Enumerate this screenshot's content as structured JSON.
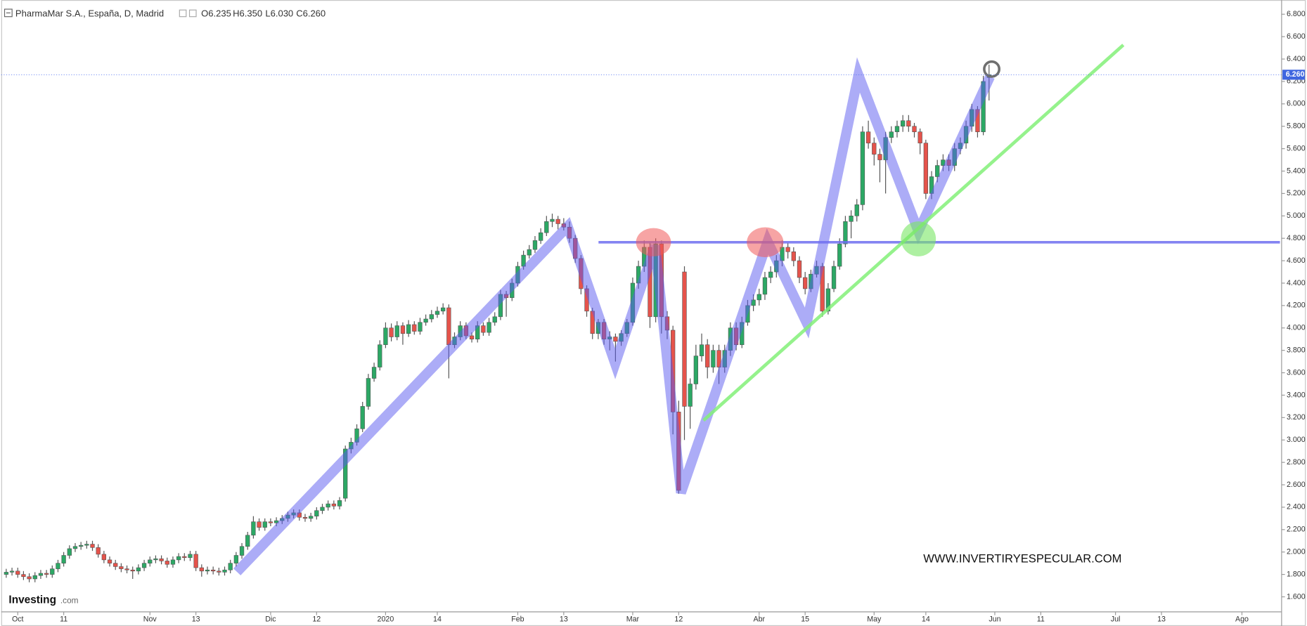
{
  "header": {
    "title": "PharmaMar S.A., España, D, Madrid",
    "open": "O6.235",
    "high": "H6.350",
    "low": "L6.030",
    "close": "C6.260"
  },
  "watermark": "WWW.INVERTIRYESPECULAR.COM",
  "logo": {
    "name": "Investing",
    "suffix": ".com"
  },
  "chart_data": {
    "type": "candlestick",
    "up_color": "#2ca865",
    "down_color": "#e5534b",
    "xlim": [
      -0.87,
      221.9
    ],
    "ylim": [
      1.466,
      6.927
    ],
    "yticks": [
      {
        "value": 1.6,
        "label": "1.600"
      },
      {
        "value": 1.8,
        "label": "1.800"
      },
      {
        "value": 2.0,
        "label": "2.000"
      },
      {
        "value": 2.2,
        "label": "2.200"
      },
      {
        "value": 2.4,
        "label": "2.400"
      },
      {
        "value": 2.6,
        "label": "2.600"
      },
      {
        "value": 2.8,
        "label": "2.800"
      },
      {
        "value": 3.0,
        "label": "3.000"
      },
      {
        "value": 3.2,
        "label": "3.200"
      },
      {
        "value": 3.4,
        "label": "3.400"
      },
      {
        "value": 3.6,
        "label": "3.600"
      },
      {
        "value": 3.8,
        "label": "3.800"
      },
      {
        "value": 4.0,
        "label": "4.000"
      },
      {
        "value": 4.2,
        "label": "4.200"
      },
      {
        "value": 4.4,
        "label": "4.400"
      },
      {
        "value": 4.6,
        "label": "4.600"
      },
      {
        "value": 4.8,
        "label": "4.800"
      },
      {
        "value": 5.0,
        "label": "5.000"
      },
      {
        "value": 5.2,
        "label": "5.200"
      },
      {
        "value": 5.4,
        "label": "5.400"
      },
      {
        "value": 5.6,
        "label": "5.600"
      },
      {
        "value": 5.8,
        "label": "5.800"
      },
      {
        "value": 6.0,
        "label": "6.000"
      },
      {
        "value": 6.2,
        "label": "6.200"
      },
      {
        "value": 6.4,
        "label": "6.400"
      },
      {
        "value": 6.6,
        "label": "6.600"
      },
      {
        "value": 6.8,
        "label": "6.800"
      }
    ],
    "xticks": [
      {
        "value": 2,
        "label": "Oct"
      },
      {
        "value": 10,
        "label": "11"
      },
      {
        "value": 25,
        "label": "Nov"
      },
      {
        "value": 33,
        "label": "13"
      },
      {
        "value": 46,
        "label": "Dic"
      },
      {
        "value": 54,
        "label": "12"
      },
      {
        "value": 66,
        "label": "2020"
      },
      {
        "value": 75,
        "label": "14"
      },
      {
        "value": 89,
        "label": "Feb"
      },
      {
        "value": 97,
        "label": "13"
      },
      {
        "value": 109,
        "label": "Mar"
      },
      {
        "value": 117,
        "label": "12"
      },
      {
        "value": 131,
        "label": "Abr"
      },
      {
        "value": 139,
        "label": "15"
      },
      {
        "value": 151,
        "label": "May"
      },
      {
        "value": 160,
        "label": "14"
      },
      {
        "value": 172,
        "label": "Jun"
      },
      {
        "value": 180,
        "label": "11"
      },
      {
        "value": 193,
        "label": "Jul"
      },
      {
        "value": 201,
        "label": "13"
      },
      {
        "value": 215,
        "label": "Ago"
      }
    ],
    "last_price": {
      "value": 6.26,
      "label": "6.260"
    },
    "candles": [
      [
        1.8,
        1.85,
        1.77,
        1.82
      ],
      [
        1.82,
        1.86,
        1.79,
        1.83
      ],
      [
        1.83,
        1.86,
        1.77,
        1.8
      ],
      [
        1.8,
        1.83,
        1.75,
        1.78
      ],
      [
        1.78,
        1.81,
        1.73,
        1.76
      ],
      [
        1.76,
        1.82,
        1.73,
        1.79
      ],
      [
        1.79,
        1.84,
        1.76,
        1.81
      ],
      [
        1.81,
        1.84,
        1.77,
        1.8
      ],
      [
        1.8,
        1.88,
        1.77,
        1.85
      ],
      [
        1.85,
        1.93,
        1.82,
        1.9
      ],
      [
        1.9,
        2.0,
        1.87,
        1.97
      ],
      [
        1.97,
        2.06,
        1.94,
        2.03
      ],
      [
        2.03,
        2.08,
        2.0,
        2.05
      ],
      [
        2.05,
        2.09,
        2.02,
        2.06
      ],
      [
        2.06,
        2.1,
        2.03,
        2.07
      ],
      [
        2.07,
        2.1,
        2.01,
        2.04
      ],
      [
        2.04,
        2.07,
        1.95,
        1.98
      ],
      [
        1.98,
        2.01,
        1.9,
        1.93
      ],
      [
        1.93,
        1.96,
        1.87,
        1.9
      ],
      [
        1.9,
        1.93,
        1.84,
        1.87
      ],
      [
        1.87,
        1.9,
        1.82,
        1.85
      ],
      [
        1.85,
        1.88,
        1.81,
        1.84
      ],
      [
        1.84,
        1.87,
        1.76,
        1.83
      ],
      [
        1.83,
        1.89,
        1.8,
        1.86
      ],
      [
        1.86,
        1.93,
        1.83,
        1.9
      ],
      [
        1.9,
        1.96,
        1.87,
        1.93
      ],
      [
        1.93,
        1.97,
        1.9,
        1.94
      ],
      [
        1.94,
        1.97,
        1.89,
        1.92
      ],
      [
        1.92,
        1.95,
        1.86,
        1.89
      ],
      [
        1.89,
        1.96,
        1.86,
        1.93
      ],
      [
        1.93,
        1.99,
        1.9,
        1.96
      ],
      [
        1.96,
        1.99,
        1.92,
        1.95
      ],
      [
        1.95,
        2.01,
        1.92,
        1.98
      ],
      [
        1.98,
        2.01,
        1.83,
        1.86
      ],
      [
        1.86,
        1.89,
        1.78,
        1.83
      ],
      [
        1.83,
        1.87,
        1.8,
        1.84
      ],
      [
        1.84,
        1.87,
        1.8,
        1.83
      ],
      [
        1.83,
        1.86,
        1.79,
        1.82
      ],
      [
        1.82,
        1.87,
        1.79,
        1.84
      ],
      [
        1.84,
        1.93,
        1.81,
        1.9
      ],
      [
        1.9,
        2.0,
        1.87,
        1.97
      ],
      [
        1.97,
        2.08,
        1.94,
        2.05
      ],
      [
        2.05,
        2.18,
        2.02,
        2.15
      ],
      [
        2.15,
        2.32,
        2.12,
        2.27
      ],
      [
        2.27,
        2.3,
        2.19,
        2.22
      ],
      [
        2.22,
        2.3,
        2.19,
        2.27
      ],
      [
        2.27,
        2.3,
        2.23,
        2.26
      ],
      [
        2.26,
        2.31,
        2.23,
        2.28
      ],
      [
        2.28,
        2.33,
        2.25,
        2.3
      ],
      [
        2.3,
        2.36,
        2.27,
        2.33
      ],
      [
        2.33,
        2.38,
        2.3,
        2.35
      ],
      [
        2.35,
        2.38,
        2.28,
        2.31
      ],
      [
        2.31,
        2.34,
        2.27,
        2.3
      ],
      [
        2.3,
        2.35,
        2.27,
        2.32
      ],
      [
        2.32,
        2.4,
        2.29,
        2.37
      ],
      [
        2.37,
        2.43,
        2.34,
        2.4
      ],
      [
        2.4,
        2.46,
        2.37,
        2.43
      ],
      [
        2.43,
        2.46,
        2.38,
        2.41
      ],
      [
        2.41,
        2.49,
        2.38,
        2.46
      ],
      [
        2.48,
        2.95,
        2.45,
        2.92
      ],
      [
        2.92,
        3.02,
        2.88,
        2.98
      ],
      [
        2.98,
        3.14,
        2.95,
        3.1
      ],
      [
        3.1,
        3.34,
        3.07,
        3.3
      ],
      [
        3.3,
        3.59,
        3.27,
        3.55
      ],
      [
        3.55,
        3.69,
        3.52,
        3.65
      ],
      [
        3.65,
        3.89,
        3.62,
        3.85
      ],
      [
        3.85,
        4.05,
        3.82,
        4.0
      ],
      [
        4.0,
        4.04,
        3.88,
        3.92
      ],
      [
        3.92,
        4.06,
        3.89,
        4.02
      ],
      [
        4.02,
        4.05,
        3.85,
        3.95
      ],
      [
        3.95,
        4.07,
        3.92,
        4.03
      ],
      [
        4.03,
        4.06,
        3.94,
        3.97
      ],
      [
        3.97,
        4.09,
        3.94,
        4.05
      ],
      [
        4.05,
        4.12,
        4.02,
        4.08
      ],
      [
        4.08,
        4.16,
        4.05,
        4.12
      ],
      [
        4.12,
        4.19,
        4.09,
        4.15
      ],
      [
        4.15,
        4.22,
        4.12,
        4.18
      ],
      [
        4.18,
        4.21,
        3.55,
        3.85
      ],
      [
        3.85,
        3.96,
        3.82,
        3.92
      ],
      [
        3.92,
        4.06,
        3.89,
        4.02
      ],
      [
        4.02,
        4.05,
        3.9,
        3.93
      ],
      [
        3.93,
        3.96,
        3.87,
        3.9
      ],
      [
        3.9,
        4.06,
        3.87,
        4.02
      ],
      [
        4.02,
        4.05,
        3.93,
        3.96
      ],
      [
        3.96,
        4.09,
        3.93,
        4.05
      ],
      [
        4.05,
        4.14,
        4.02,
        4.1
      ],
      [
        4.1,
        4.34,
        4.07,
        4.3
      ],
      [
        4.3,
        4.33,
        4.1,
        4.27
      ],
      [
        4.27,
        4.44,
        4.24,
        4.4
      ],
      [
        4.4,
        4.59,
        4.37,
        4.55
      ],
      [
        4.55,
        4.69,
        4.52,
        4.65
      ],
      [
        4.65,
        4.74,
        4.62,
        4.7
      ],
      [
        4.7,
        4.82,
        4.67,
        4.78
      ],
      [
        4.78,
        4.89,
        4.75,
        4.85
      ],
      [
        4.85,
        5.0,
        4.82,
        4.95
      ],
      [
        4.95,
        5.02,
        4.9,
        4.97
      ],
      [
        4.97,
        5.0,
        4.88,
        4.93
      ],
      [
        4.93,
        4.98,
        4.87,
        4.9
      ],
      [
        4.9,
        4.95,
        4.76,
        4.8
      ],
      [
        4.8,
        4.83,
        4.58,
        4.62
      ],
      [
        4.62,
        4.65,
        4.3,
        4.35
      ],
      [
        4.35,
        4.38,
        4.1,
        4.15
      ],
      [
        4.15,
        4.18,
        3.9,
        3.95
      ],
      [
        3.95,
        4.08,
        3.9,
        4.05
      ],
      [
        4.05,
        4.08,
        3.85,
        3.9
      ],
      [
        3.9,
        3.97,
        3.8,
        3.92
      ],
      [
        3.92,
        3.95,
        3.7,
        3.88
      ],
      [
        3.88,
        3.98,
        3.84,
        3.95
      ],
      [
        3.95,
        4.08,
        3.92,
        4.05
      ],
      [
        4.05,
        4.45,
        4.02,
        4.4
      ],
      [
        4.4,
        4.6,
        4.35,
        4.55
      ],
      [
        4.55,
        4.78,
        4.5,
        4.72
      ],
      [
        4.72,
        4.76,
        4.0,
        4.1
      ],
      [
        4.1,
        4.8,
        4.05,
        4.75
      ],
      [
        4.75,
        4.78,
        3.95,
        4.1
      ],
      [
        4.1,
        4.15,
        3.9,
        3.98
      ],
      [
        3.98,
        4.02,
        3.05,
        3.25
      ],
      [
        3.25,
        3.35,
        2.52,
        2.55
      ],
      [
        4.5,
        4.55,
        3.0,
        3.3
      ],
      [
        3.3,
        3.55,
        3.1,
        3.5
      ],
      [
        3.5,
        3.85,
        3.45,
        3.75
      ],
      [
        3.75,
        3.95,
        3.7,
        3.85
      ],
      [
        3.85,
        3.9,
        3.55,
        3.65
      ],
      [
        3.65,
        3.85,
        3.6,
        3.8
      ],
      [
        3.8,
        3.85,
        3.5,
        3.65
      ],
      [
        3.65,
        3.85,
        3.6,
        3.8
      ],
      [
        3.8,
        4.05,
        3.75,
        4.0
      ],
      [
        4.0,
        4.05,
        3.8,
        3.85
      ],
      [
        3.85,
        4.1,
        3.82,
        4.05
      ],
      [
        4.05,
        4.25,
        4.02,
        4.2
      ],
      [
        4.2,
        4.3,
        4.15,
        4.25
      ],
      [
        4.25,
        4.35,
        4.2,
        4.3
      ],
      [
        4.3,
        4.5,
        4.25,
        4.45
      ],
      [
        4.45,
        4.55,
        4.4,
        4.5
      ],
      [
        4.5,
        4.65,
        4.45,
        4.6
      ],
      [
        4.6,
        4.78,
        4.55,
        4.72
      ],
      [
        4.72,
        4.76,
        4.62,
        4.68
      ],
      [
        4.68,
        4.72,
        4.55,
        4.6
      ],
      [
        4.6,
        4.64,
        4.4,
        4.45
      ],
      [
        4.45,
        4.5,
        4.3,
        4.35
      ],
      [
        4.35,
        4.52,
        4.32,
        4.48
      ],
      [
        4.48,
        4.6,
        4.45,
        4.55
      ],
      [
        4.55,
        4.58,
        4.1,
        4.15
      ],
      [
        4.15,
        4.4,
        4.12,
        4.35
      ],
      [
        4.35,
        4.6,
        4.32,
        4.55
      ],
      [
        4.55,
        4.8,
        4.52,
        4.75
      ],
      [
        4.75,
        5.0,
        4.72,
        4.95
      ],
      [
        4.95,
        5.05,
        4.8,
        5.0
      ],
      [
        5.0,
        5.15,
        4.95,
        5.1
      ],
      [
        5.1,
        5.8,
        5.05,
        5.75
      ],
      [
        5.75,
        5.85,
        5.6,
        5.65
      ],
      [
        5.65,
        5.7,
        5.45,
        5.55
      ],
      [
        5.55,
        5.6,
        5.3,
        5.5
      ],
      [
        5.5,
        5.75,
        5.2,
        5.7
      ],
      [
        5.7,
        5.8,
        5.65,
        5.75
      ],
      [
        5.75,
        5.85,
        5.7,
        5.8
      ],
      [
        5.8,
        5.9,
        5.75,
        5.85
      ],
      [
        5.85,
        5.9,
        5.75,
        5.8
      ],
      [
        5.8,
        5.83,
        5.7,
        5.75
      ],
      [
        5.75,
        5.78,
        5.55,
        5.65
      ],
      [
        5.65,
        5.68,
        5.15,
        5.2
      ],
      [
        5.2,
        5.4,
        5.15,
        5.35
      ],
      [
        5.35,
        5.5,
        5.3,
        5.45
      ],
      [
        5.45,
        5.55,
        5.4,
        5.5
      ],
      [
        5.5,
        5.55,
        5.4,
        5.45
      ],
      [
        5.45,
        5.65,
        5.4,
        5.6
      ],
      [
        5.6,
        5.7,
        5.55,
        5.65
      ],
      [
        5.65,
        5.85,
        5.6,
        5.8
      ],
      [
        5.8,
        6.0,
        5.75,
        5.95
      ],
      [
        5.95,
        5.98,
        5.7,
        5.75
      ],
      [
        5.75,
        6.25,
        5.72,
        6.2
      ],
      [
        6.235,
        6.35,
        6.03,
        6.26
      ]
    ]
  }
}
